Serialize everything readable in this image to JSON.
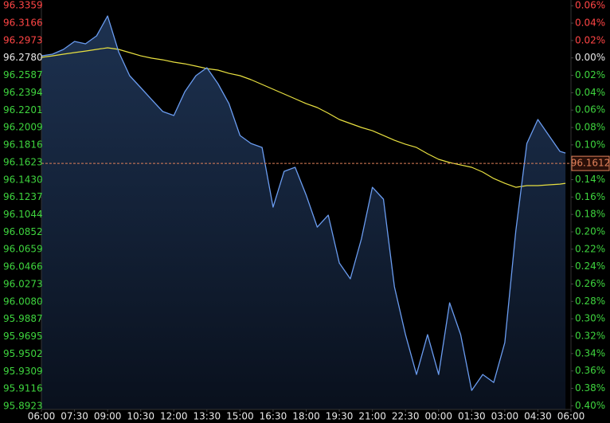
{
  "chart_data": {
    "type": "line",
    "x": [
      0,
      0.5,
      1,
      1.5,
      2,
      2.5,
      3,
      3.5,
      4,
      4.5,
      5,
      5.5,
      6,
      6.5,
      7,
      7.5,
      8,
      8.5,
      9,
      9.5,
      10,
      10.5,
      11,
      11.5,
      12,
      12.5,
      13,
      13.5,
      14,
      14.5,
      15,
      15.5,
      16,
      16.5,
      17,
      17.5,
      18,
      18.5,
      19,
      19.5,
      20,
      20.5,
      21,
      21.5,
      22,
      22.5,
      23,
      23.5,
      23.75
    ],
    "series": [
      {
        "color": "#6a9cf0",
        "values": [
          96.2803,
          96.2821,
          96.2874,
          96.2962,
          96.2936,
          96.3024,
          96.3244,
          96.2847,
          96.2583,
          96.2451,
          96.2318,
          96.2186,
          96.2142,
          96.2406,
          96.2583,
          96.2671,
          96.2495,
          96.2274,
          96.1921,
          96.1833,
          96.1789,
          96.1128,
          96.1524,
          96.1569,
          96.126,
          96.0907,
          96.1039,
          96.051,
          96.0334,
          96.0775,
          96.1348,
          96.1216,
          96.0246,
          95.9716,
          95.9275,
          95.9716,
          95.9275,
          96.0069,
          95.9716,
          95.9099,
          95.9275,
          95.9187,
          95.9628,
          96.0863,
          96.1833,
          96.2098,
          96.1921,
          96.1745,
          96.1727
        ]
      },
      {
        "color": "#e8e040",
        "values": [
          96.2786,
          96.2803,
          96.2821,
          96.2839,
          96.2856,
          96.2874,
          96.2892,
          96.2874,
          96.2839,
          96.2803,
          96.2777,
          96.2759,
          96.2733,
          96.2715,
          96.2689,
          96.2662,
          96.2645,
          96.2609,
          96.2583,
          96.2539,
          96.2486,
          96.2433,
          96.238,
          96.2327,
          96.2274,
          96.223,
          96.2168,
          96.2098,
          96.2054,
          96.201,
          96.1974,
          96.1921,
          96.1868,
          96.1824,
          96.1789,
          96.1719,
          96.1657,
          96.1622,
          96.1595,
          96.1569,
          96.1516,
          96.1445,
          96.1392,
          96.1348,
          96.1366,
          96.1366,
          96.1375,
          96.1383,
          96.1392
        ]
      }
    ],
    "last_price": 96.1612,
    "last_price_color": "#e0805a",
    "up_color": "#ff4545",
    "down_color": "#3ed43e",
    "xlim": [
      0,
      24
    ],
    "xticks": [
      {
        "value": 0,
        "label": "06:00"
      },
      {
        "value": 1.5,
        "label": "07:30"
      },
      {
        "value": 3,
        "label": "09:00"
      },
      {
        "value": 4.5,
        "label": "10:30"
      },
      {
        "value": 6,
        "label": "12:00"
      },
      {
        "value": 7.5,
        "label": "13:30"
      },
      {
        "value": 9,
        "label": "15:00"
      },
      {
        "value": 10.5,
        "label": "16:30"
      },
      {
        "value": 12,
        "label": "18:00"
      },
      {
        "value": 13.5,
        "label": "19:30"
      },
      {
        "value": 15,
        "label": "21:00"
      },
      {
        "value": 16.5,
        "label": "22:30"
      },
      {
        "value": 18,
        "label": "00:00"
      },
      {
        "value": 19.5,
        "label": "01:30"
      },
      {
        "value": 21,
        "label": "03:00"
      },
      {
        "value": 22.5,
        "label": "04:30"
      },
      {
        "value": 24,
        "label": "06:00"
      }
    ],
    "ylim": [
      95.8888,
      96.3421
    ],
    "yticks": [
      96.3359,
      96.3166,
      96.2973,
      {
        "value": 96.278,
        "label": "96.2780"
      },
      96.2587,
      96.2394,
      96.2201,
      96.2009,
      96.1816,
      96.1623,
      {
        "value": 96.143,
        "label": "96.1430"
      },
      96.1237,
      96.1044,
      96.0852,
      96.0659,
      96.0466,
      96.0273,
      {
        "value": 96.008,
        "label": "96.0080"
      },
      95.9887,
      95.9695,
      95.9502,
      95.9309,
      95.9116,
      95.8923
    ],
    "y2lim": [
      -0.4043,
      0.0666
    ],
    "y2ticks": [
      {
        "value": 0.06,
        "label": "0.06%"
      },
      {
        "value": 0.04,
        "label": "0.04%"
      },
      {
        "value": 0.02,
        "label": "0.02%"
      },
      {
        "value": 0,
        "label": "0.00%"
      },
      {
        "value": -0.02,
        "label": "0.02%"
      },
      {
        "value": -0.04,
        "label": "0.04%"
      },
      {
        "value": -0.06,
        "label": "0.06%"
      },
      {
        "value": -0.08,
        "label": "0.08%"
      },
      {
        "value": -0.1,
        "label": "0.10%"
      },
      {
        "value": -0.12,
        "label": "0.12%"
      },
      {
        "value": -0.14,
        "label": "0.14%"
      },
      {
        "value": -0.16,
        "label": "0.16%"
      },
      {
        "value": -0.18,
        "label": "0.18%"
      },
      {
        "value": -0.2,
        "label": "0.20%"
      },
      {
        "value": -0.22,
        "label": "0.22%"
      },
      {
        "value": -0.24,
        "label": "0.24%"
      },
      {
        "value": -0.26,
        "label": "0.26%"
      },
      {
        "value": -0.28,
        "label": "0.28%"
      },
      {
        "value": -0.3,
        "label": "0.30%"
      },
      {
        "value": -0.32,
        "label": "0.32%"
      },
      {
        "value": -0.34,
        "label": "0.34%"
      },
      {
        "value": -0.36,
        "label": "0.36%"
      },
      {
        "value": -0.38,
        "label": "0.38%"
      },
      {
        "value": -0.4,
        "label": "0.40%"
      }
    ]
  }
}
